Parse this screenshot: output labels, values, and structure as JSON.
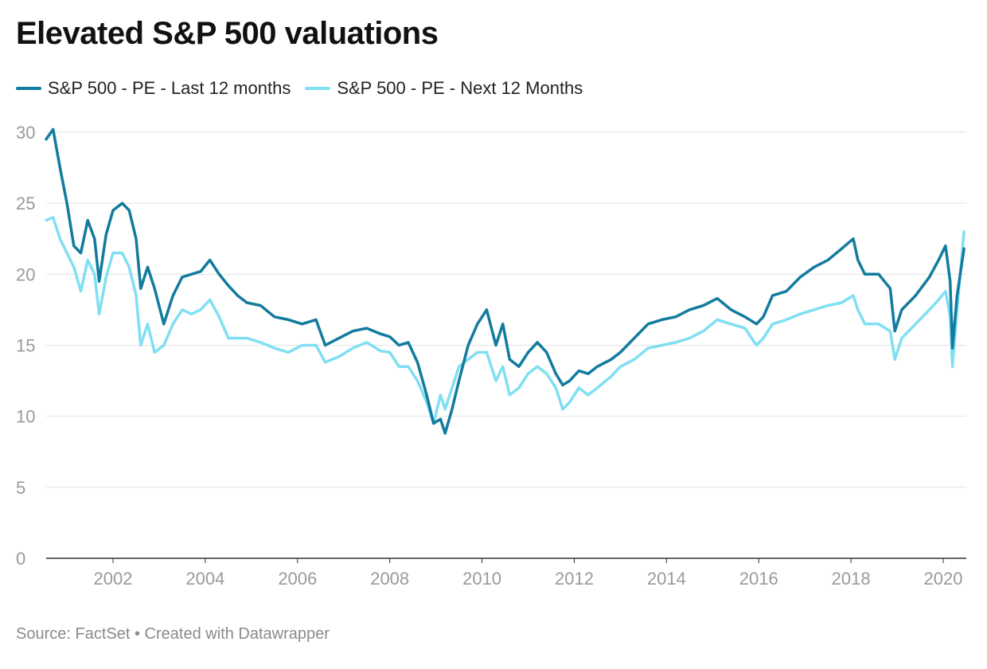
{
  "title": "Elevated S&P 500 valuations",
  "footer": {
    "source": "Source: FactSet",
    "separator": "•",
    "credit": "Created with Datawrapper"
  },
  "colors": {
    "trailing": "#127b9e",
    "forward": "#7fdff3",
    "grid": "#e3e3e3",
    "axis": "#333333",
    "tick_text": "#9a9a9a"
  },
  "chart_data": {
    "type": "line",
    "title": "Elevated S&P 500 valuations",
    "xlabel": "",
    "ylabel": "",
    "xlim": [
      2000.55,
      2020.5
    ],
    "ylim": [
      0,
      30
    ],
    "yticks": [
      0,
      5,
      10,
      15,
      20,
      25,
      30
    ],
    "xticks": [
      2002,
      2004,
      2006,
      2008,
      2010,
      2012,
      2014,
      2016,
      2018,
      2020
    ],
    "grid": true,
    "legend_position": "top-left",
    "series": [
      {
        "name": "S&P 500 - PE - Last 12 months",
        "color": "#127b9e",
        "x": [
          2000.55,
          2000.7,
          2000.85,
          2001.0,
          2001.15,
          2001.3,
          2001.45,
          2001.6,
          2001.7,
          2001.85,
          2002.0,
          2002.2,
          2002.35,
          2002.5,
          2002.6,
          2002.75,
          2002.9,
          2003.1,
          2003.3,
          2003.5,
          2003.7,
          2003.9,
          2004.1,
          2004.3,
          2004.5,
          2004.7,
          2004.9,
          2005.2,
          2005.5,
          2005.8,
          2006.1,
          2006.4,
          2006.6,
          2006.9,
          2007.2,
          2007.5,
          2007.8,
          2008.0,
          2008.2,
          2008.4,
          2008.6,
          2008.8,
          2008.95,
          2009.1,
          2009.2,
          2009.35,
          2009.5,
          2009.7,
          2009.9,
          2010.1,
          2010.3,
          2010.45,
          2010.6,
          2010.8,
          2011.0,
          2011.2,
          2011.4,
          2011.6,
          2011.75,
          2011.9,
          2012.1,
          2012.3,
          2012.5,
          2012.8,
          2013.0,
          2013.3,
          2013.6,
          2013.9,
          2014.2,
          2014.5,
          2014.8,
          2015.1,
          2015.4,
          2015.7,
          2015.95,
          2016.1,
          2016.3,
          2016.6,
          2016.9,
          2017.2,
          2017.5,
          2017.8,
          2018.05,
          2018.15,
          2018.3,
          2018.6,
          2018.85,
          2018.95,
          2019.1,
          2019.4,
          2019.7,
          2019.9,
          2020.05,
          2020.15,
          2020.2,
          2020.3,
          2020.45
        ],
        "values": [
          29.5,
          30.2,
          27.5,
          25.0,
          22.0,
          21.5,
          23.8,
          22.5,
          19.5,
          22.8,
          24.5,
          25.0,
          24.5,
          22.5,
          19.0,
          20.5,
          19.0,
          16.5,
          18.5,
          19.8,
          20.0,
          20.2,
          21.0,
          20.0,
          19.2,
          18.5,
          18.0,
          17.8,
          17.0,
          16.8,
          16.5,
          16.8,
          15.0,
          15.5,
          16.0,
          16.2,
          15.8,
          15.6,
          15.0,
          15.2,
          13.8,
          11.5,
          9.5,
          9.8,
          8.8,
          10.5,
          12.5,
          15.0,
          16.5,
          17.5,
          15.0,
          16.5,
          14.0,
          13.5,
          14.5,
          15.2,
          14.5,
          13.0,
          12.2,
          12.5,
          13.2,
          13.0,
          13.5,
          14.0,
          14.5,
          15.5,
          16.5,
          16.8,
          17.0,
          17.5,
          17.8,
          18.3,
          17.5,
          17.0,
          16.5,
          17.0,
          18.5,
          18.8,
          19.8,
          20.5,
          21.0,
          21.8,
          22.5,
          21.0,
          20.0,
          20.0,
          19.0,
          16.0,
          17.5,
          18.5,
          19.8,
          21.0,
          22.0,
          19.5,
          14.8,
          18.5,
          21.8
        ]
      },
      {
        "name": "S&P 500 - PE - Next 12 Months",
        "color": "#7fdff3",
        "x": [
          2000.55,
          2000.7,
          2000.85,
          2001.0,
          2001.15,
          2001.3,
          2001.45,
          2001.6,
          2001.7,
          2001.85,
          2002.0,
          2002.2,
          2002.35,
          2002.5,
          2002.6,
          2002.75,
          2002.9,
          2003.1,
          2003.3,
          2003.5,
          2003.7,
          2003.9,
          2004.1,
          2004.3,
          2004.5,
          2004.7,
          2004.9,
          2005.2,
          2005.5,
          2005.8,
          2006.1,
          2006.4,
          2006.6,
          2006.9,
          2007.2,
          2007.5,
          2007.8,
          2008.0,
          2008.2,
          2008.4,
          2008.6,
          2008.8,
          2008.95,
          2009.1,
          2009.2,
          2009.35,
          2009.5,
          2009.7,
          2009.9,
          2010.1,
          2010.3,
          2010.45,
          2010.6,
          2010.8,
          2011.0,
          2011.2,
          2011.4,
          2011.6,
          2011.75,
          2011.9,
          2012.1,
          2012.3,
          2012.5,
          2012.8,
          2013.0,
          2013.3,
          2013.6,
          2013.9,
          2014.2,
          2014.5,
          2014.8,
          2015.1,
          2015.4,
          2015.7,
          2015.95,
          2016.1,
          2016.3,
          2016.6,
          2016.9,
          2017.2,
          2017.5,
          2017.8,
          2018.05,
          2018.15,
          2018.3,
          2018.6,
          2018.85,
          2018.95,
          2019.1,
          2019.4,
          2019.7,
          2019.9,
          2020.05,
          2020.15,
          2020.2,
          2020.3,
          2020.45
        ],
        "values": [
          23.8,
          24.0,
          22.5,
          21.5,
          20.5,
          18.8,
          21.0,
          20.0,
          17.2,
          19.8,
          21.5,
          21.5,
          20.5,
          18.5,
          15.0,
          16.5,
          14.5,
          15.0,
          16.5,
          17.5,
          17.2,
          17.5,
          18.2,
          17.0,
          15.5,
          15.5,
          15.5,
          15.2,
          14.8,
          14.5,
          15.0,
          15.0,
          13.8,
          14.2,
          14.8,
          15.2,
          14.6,
          14.5,
          13.5,
          13.5,
          12.5,
          11.0,
          9.5,
          11.5,
          10.5,
          12.0,
          13.5,
          14.0,
          14.5,
          14.5,
          12.5,
          13.5,
          11.5,
          12.0,
          13.0,
          13.5,
          13.0,
          12.0,
          10.5,
          11.0,
          12.0,
          11.5,
          12.0,
          12.8,
          13.5,
          14.0,
          14.8,
          15.0,
          15.2,
          15.5,
          16.0,
          16.8,
          16.5,
          16.2,
          15.0,
          15.5,
          16.5,
          16.8,
          17.2,
          17.5,
          17.8,
          18.0,
          18.5,
          17.5,
          16.5,
          16.5,
          16.0,
          14.0,
          15.5,
          16.5,
          17.5,
          18.2,
          18.8,
          17.0,
          13.5,
          17.5,
          23.0
        ]
      }
    ]
  }
}
